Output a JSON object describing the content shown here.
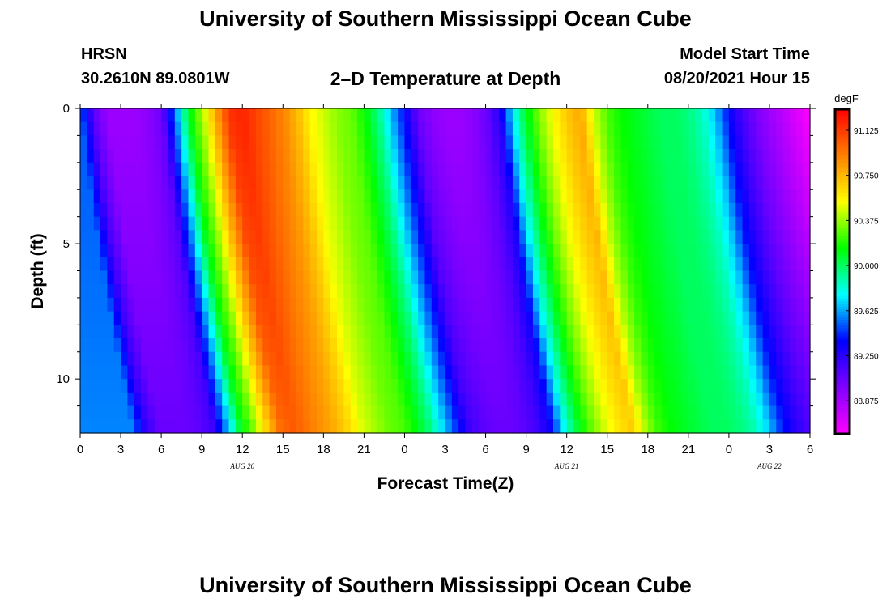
{
  "header": {
    "title": "University of Southern Mississippi Ocean Cube",
    "station": "HRSN",
    "coordinates": "30.2610N  89.0801W",
    "subtitle": "2–D Temperature at Depth",
    "model_start_label": "Model Start Time",
    "model_start_value": "08/20/2021 Hour 15"
  },
  "footer": {
    "title": "University of Southern Mississippi Ocean Cube"
  },
  "chart_data": {
    "type": "heatmap",
    "title": "2–D Temperature at Depth",
    "xlabel": "Forecast Time(Z)",
    "ylabel": "Depth (ft)",
    "x_unit": "hours from Aug 20 00Z",
    "x_range": [
      0,
      54
    ],
    "x_ticks": [
      0,
      3,
      6,
      9,
      12,
      15,
      18,
      21,
      24,
      27,
      30,
      33,
      36,
      39,
      42,
      45,
      48,
      51,
      54
    ],
    "x_tick_labels": [
      "0",
      "3",
      "6",
      "9",
      "12",
      "15",
      "18",
      "21",
      "0",
      "3",
      "6",
      "9",
      "12",
      "15",
      "18",
      "21",
      "0",
      "3",
      "6"
    ],
    "date_labels": [
      {
        "text": "AUG  20",
        "hour": 12
      },
      {
        "text": "AUG  21",
        "hour": 36
      },
      {
        "text": "AUG  22",
        "hour": 51
      }
    ],
    "y_range": [
      0,
      12
    ],
    "y_inverted": true,
    "y_ticks": [
      0,
      5,
      10
    ],
    "y_minor_ticks": [
      1,
      2,
      3,
      4,
      6,
      7,
      8,
      9,
      11
    ],
    "depth_levels": [
      0,
      0.5,
      1,
      1.5,
      2,
      2.5,
      3,
      3.5,
      4,
      4.5,
      5,
      5.5,
      6,
      6.5,
      7,
      7.5,
      8,
      8.5,
      9,
      9.5,
      10,
      10.5,
      11,
      11.5,
      12
    ],
    "time_resolution_hours": 0.5,
    "colorbar": {
      "unit": "degF",
      "min": 88.6,
      "max": 91.3,
      "ticks": [
        88.875,
        89.25,
        89.625,
        90.0,
        90.375,
        90.75,
        91.125
      ],
      "tick_labels": [
        "88.875",
        "89.250",
        "89.625",
        "90.000",
        "90.375",
        "90.750",
        "91.125"
      ],
      "colors": [
        "#ff00ff",
        "#8000ff",
        "#0000ff",
        "#00ffff",
        "#00ff00",
        "#ffff00",
        "#ff8000",
        "#ff0000"
      ]
    },
    "temperature_profile_surface": {
      "hours": [
        0,
        1,
        2,
        3,
        4,
        5,
        6,
        7,
        8,
        9,
        10,
        11,
        12,
        13,
        14,
        15,
        16,
        17,
        18,
        19,
        20,
        21,
        22,
        23,
        24,
        25,
        26,
        27,
        28,
        29,
        30,
        31,
        32,
        33,
        34,
        35,
        36,
        37,
        38,
        39,
        40,
        41,
        42,
        43,
        44,
        45,
        46,
        47,
        48,
        49,
        50,
        51,
        52,
        53,
        54
      ],
      "degF": [
        89.5,
        89.1,
        88.9,
        88.9,
        88.9,
        88.95,
        89.05,
        89.55,
        90.1,
        90.4,
        90.8,
        91.15,
        91.2,
        91.1,
        91.0,
        90.9,
        90.75,
        90.55,
        90.45,
        90.35,
        90.3,
        90.15,
        89.95,
        89.65,
        89.35,
        89.05,
        88.95,
        88.9,
        88.9,
        88.95,
        89.05,
        89.25,
        89.75,
        90.1,
        90.35,
        90.55,
        90.7,
        90.8,
        90.45,
        90.25,
        90.15,
        90.1,
        90.05,
        90.0,
        90.0,
        89.95,
        89.85,
        89.65,
        89.35,
        89.15,
        89.0,
        88.9,
        88.8,
        88.7,
        88.6
      ]
    },
    "annotations": []
  }
}
